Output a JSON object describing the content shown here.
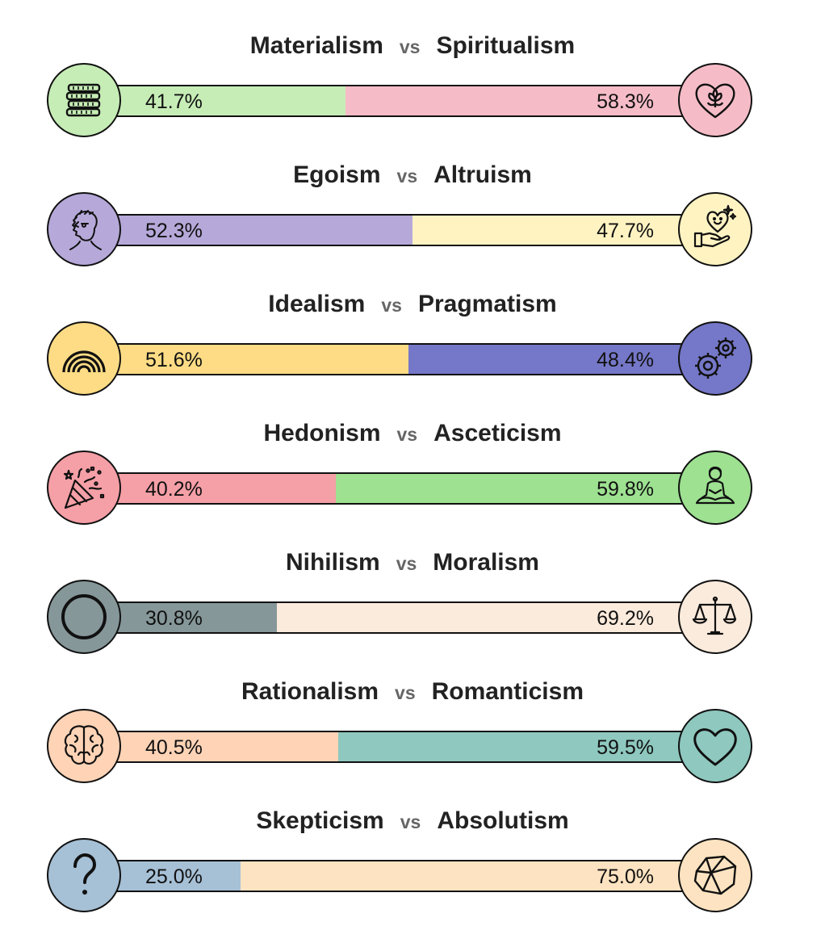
{
  "chart_data": {
    "type": "bar",
    "orientation": "horizontal",
    "stacked": true,
    "rows": [
      {
        "left": "Materialism",
        "right": "Spiritualism",
        "left_value": 41.7,
        "right_value": 58.3,
        "left_label": "41.7%",
        "right_label": "58.3%",
        "left_color": "#c6edb6",
        "right_color": "#f5bcc7",
        "left_icon": "coins-icon",
        "right_icon": "heart-flower-icon"
      },
      {
        "left": "Egoism",
        "right": "Altruism",
        "left_value": 52.3,
        "right_value": 47.7,
        "left_label": "52.3%",
        "right_label": "47.7%",
        "left_color": "#b6a9d9",
        "right_color": "#fff3c2",
        "left_icon": "profile-portrait-icon",
        "right_icon": "giving-heart-hand-icon"
      },
      {
        "left": "Idealism",
        "right": "Pragmatism",
        "left_value": 51.6,
        "right_value": 48.4,
        "left_label": "51.6%",
        "right_label": "48.4%",
        "left_color": "#fedc85",
        "right_color": "#7577c8",
        "left_icon": "rainbow-icon",
        "right_icon": "gears-icon"
      },
      {
        "left": "Hedonism",
        "right": "Asceticism",
        "left_value": 40.2,
        "right_value": 59.8,
        "left_label": "40.2%",
        "right_label": "59.8%",
        "left_color": "#f59fa6",
        "right_color": "#9de191",
        "left_icon": "party-popper-icon",
        "right_icon": "meditation-icon"
      },
      {
        "left": "Nihilism",
        "right": "Moralism",
        "left_value": 30.8,
        "right_value": 69.2,
        "left_label": "30.8%",
        "right_label": "69.2%",
        "left_color": "#869799",
        "right_color": "#fbebdc",
        "left_icon": "empty-circle-icon",
        "right_icon": "scales-icon"
      },
      {
        "left": "Rationalism",
        "right": "Romanticism",
        "left_value": 40.5,
        "right_value": 59.5,
        "left_label": "40.5%",
        "right_label": "59.5%",
        "left_color": "#fed3b6",
        "right_color": "#8ec8bf",
        "left_icon": "brain-icon",
        "right_icon": "heart-icon"
      },
      {
        "left": "Skepticism",
        "right": "Absolutism",
        "left_value": 25.0,
        "right_value": 75.0,
        "left_label": "25.0%",
        "right_label": "75.0%",
        "left_color": "#a6c0d6",
        "right_color": "#fde3c1",
        "left_icon": "question-mark-icon",
        "right_icon": "rock-icon"
      }
    ],
    "separator": "vs"
  }
}
